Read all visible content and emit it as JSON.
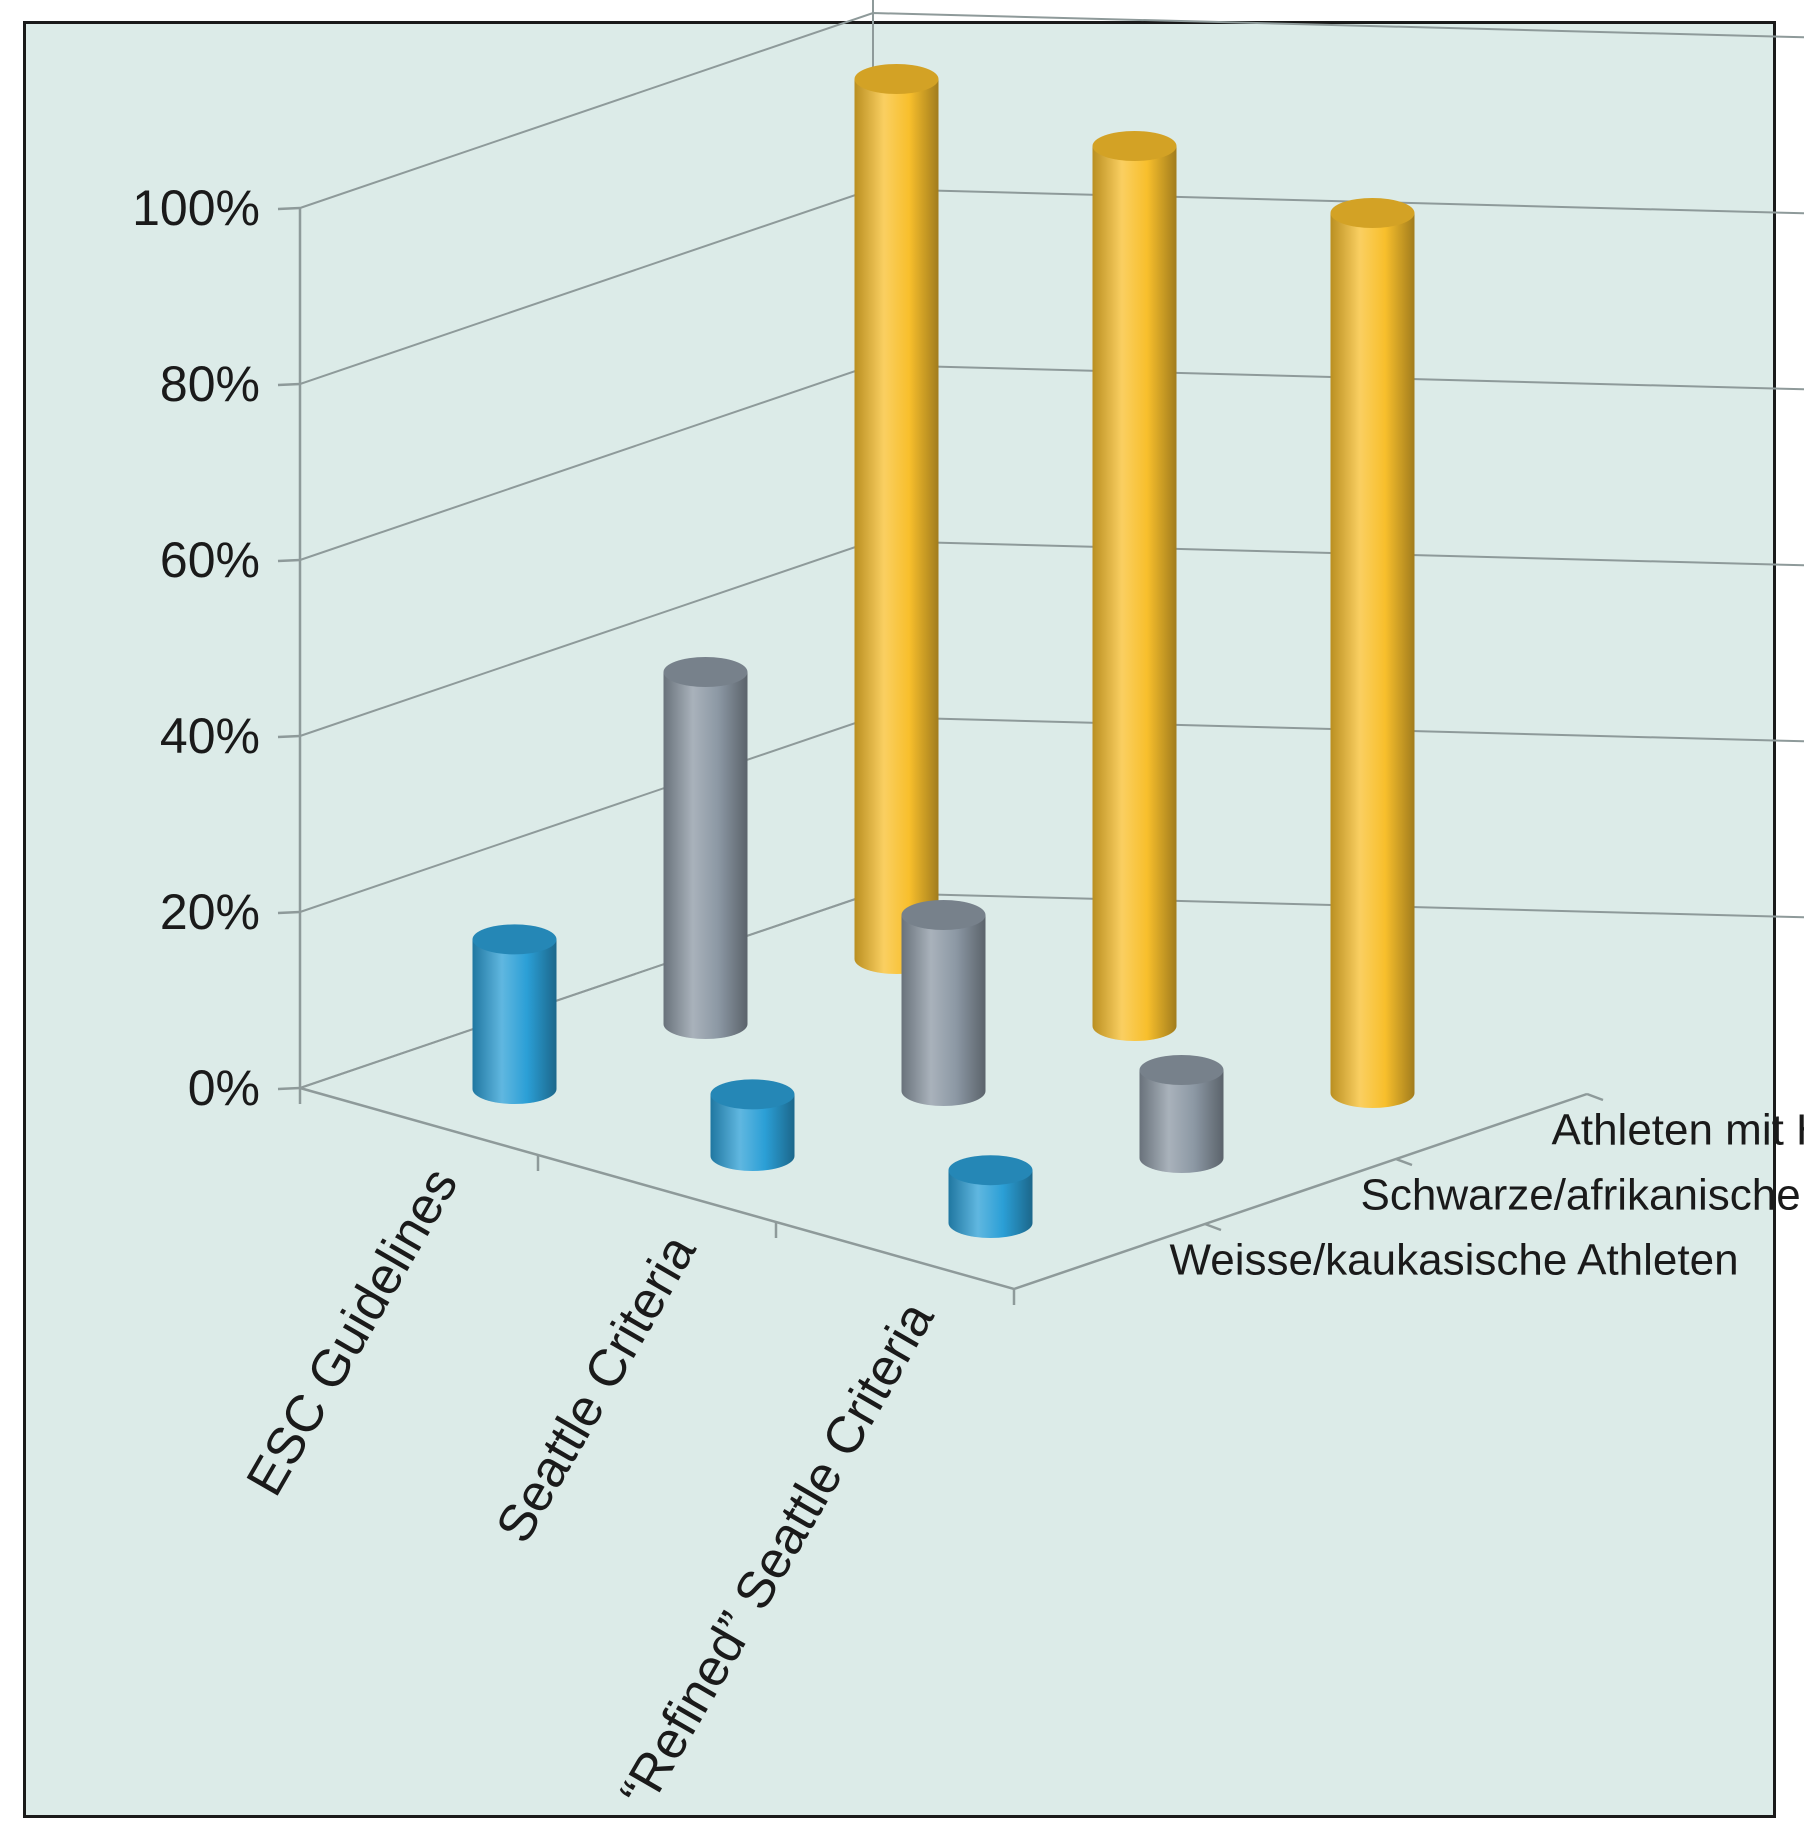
{
  "chart_data": {
    "type": "bar",
    "style": "3d-cylinder",
    "categories": [
      "ESC Guidelines",
      "Seattle Criteria",
      "“Refined” Seattle Criteria"
    ],
    "series": [
      {
        "name": "Weisse/kaukasische Athleten",
        "values": [
          17,
          7,
          6
        ],
        "color": "#2b9fd6"
      },
      {
        "name": "Schwarze/afrikanische Athleten",
        "values": [
          40,
          20,
          10
        ],
        "color": "#8c98a4"
      },
      {
        "name": "Athleten mit HCM",
        "values": [
          100,
          100,
          100
        ],
        "color": "#f8bf2c"
      }
    ],
    "y_ticks": [
      "0%",
      "20%",
      "40%",
      "60%",
      "80%",
      "100%"
    ],
    "ylim": [
      0,
      100
    ],
    "grid": true,
    "background": "#dcebe8"
  }
}
